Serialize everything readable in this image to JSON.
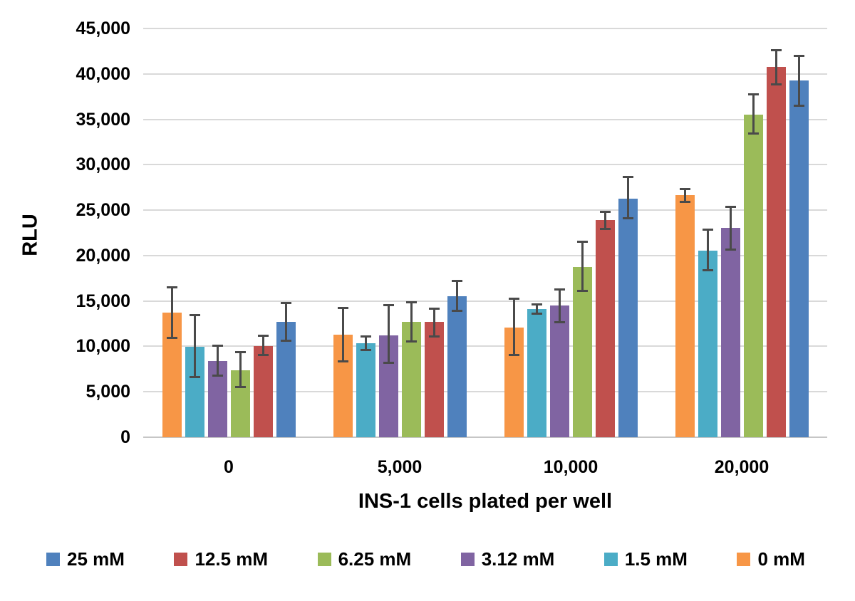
{
  "chart_data": {
    "type": "bar",
    "title": "",
    "ylabel": "RLU",
    "xlabel": "INS-1 cells plated per well",
    "ylim": [
      0,
      45000
    ],
    "ytick_step": 5000,
    "grid": "horizontal-only",
    "legend_position": "bottom",
    "error_bars": true,
    "categories": [
      "0",
      "5,000",
      "10,000",
      "20,000"
    ],
    "series": [
      {
        "name": "0 mM",
        "color": "#F79646",
        "values": [
          13700,
          11300,
          12100,
          26650
        ],
        "err_up": [
          2900,
          3050,
          3250,
          800
        ],
        "err_down": [
          2900,
          3050,
          3200,
          850
        ]
      },
      {
        "name": "1.5 mM",
        "color": "#4BACC6",
        "values": [
          9950,
          10350,
          14100,
          20550
        ],
        "err_up": [
          3600,
          850,
          600,
          2450
        ],
        "err_down": [
          3450,
          900,
          600,
          2250
        ]
      },
      {
        "name": "3.12 mM",
        "color": "#8064A2",
        "values": [
          8400,
          11250,
          14500,
          23050
        ],
        "err_up": [
          1800,
          3400,
          1900,
          2400
        ],
        "err_down": [
          1750,
          3150,
          1950,
          2500
        ]
      },
      {
        "name": "6.25 mM",
        "color": "#9BBB59",
        "values": [
          7400,
          12700,
          18700,
          35550
        ],
        "err_up": [
          2100,
          2250,
          2900,
          2300
        ],
        "err_down": [
          2000,
          2250,
          2700,
          2250
        ]
      },
      {
        "name": "12.5 mM",
        "color": "#C0504D",
        "values": [
          10050,
          12700,
          23900,
          40750
        ],
        "err_up": [
          1250,
          1550,
          1050,
          2000
        ],
        "err_down": [
          1150,
          1700,
          1050,
          2000
        ]
      },
      {
        "name": "25 mM",
        "color": "#4F81BD",
        "values": [
          12700,
          15500,
          26300,
          39250
        ],
        "err_up": [
          2200,
          1800,
          2450,
          2850
        ],
        "err_down": [
          2200,
          1700,
          2300,
          2900
        ]
      }
    ],
    "legend_order": [
      "25 mM",
      "12.5 mM",
      "6.25 mM",
      "3.12 mM",
      "1.5 mM",
      "0 mM"
    ],
    "colors": {
      "gridline": "#d9d9d9",
      "axis_line": "#c6c6c6",
      "error_bar": "#4a4a4a",
      "text": "#000000",
      "background": "#ffffff"
    }
  }
}
